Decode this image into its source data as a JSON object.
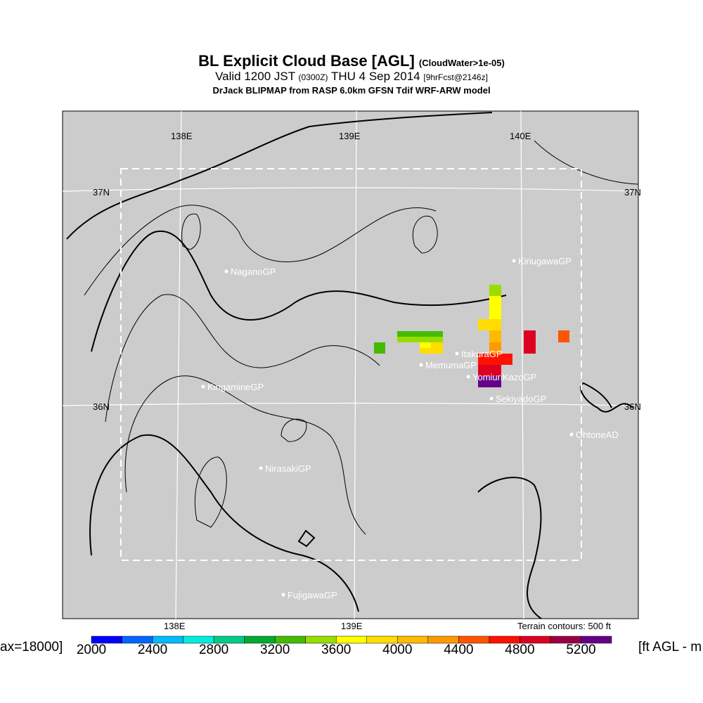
{
  "title": {
    "main": "BL Explicit Cloud Base [AGL]",
    "qualifier": "(CloudWater>1e-05)",
    "valid": "Valid 1200 JST",
    "utc": "(0300Z)",
    "date": "THU 4 Sep 2014",
    "fcst": "[9hrFcst@2146z]",
    "model": "DrJack BLIPMAP from RASP 6.0km GFSN Tdif WRF-ARW model"
  },
  "map": {
    "lon_labels_top": [
      "138E",
      "139E",
      "140E"
    ],
    "lon_labels_bottom": [
      "138E",
      "139E"
    ],
    "lat_labels": [
      "37N",
      "36N"
    ],
    "sites": [
      "NaganoGP",
      "KiriugawaGP",
      "ItakuraGP",
      "MemumaGP",
      "YomiuriKazoGP",
      "KirigamineGP",
      "SekiyadoGP",
      "OhtoneAD",
      "NirasakiGP",
      "FujigawaGP"
    ],
    "terrain_note": "Terrain contours: 500 ft"
  },
  "chart_data": {
    "type": "heatmap",
    "title": "BL Explicit Cloud Base [AGL]",
    "colorbar": {
      "ticks": [
        "2000",
        "2400",
        "2800",
        "3200",
        "3600",
        "4000",
        "4400",
        "4800",
        "5200"
      ],
      "range": [
        2000,
        5400
      ],
      "step": 200,
      "colors": [
        "#0000ff",
        "#0066ff",
        "#00bbff",
        "#00eedd",
        "#00cc88",
        "#00aa33",
        "#44bb00",
        "#99dd00",
        "#ffff00",
        "#ffdd00",
        "#ffbb00",
        "#ff9900",
        "#ff5500",
        "#ff1100",
        "#dd0022",
        "#990044",
        "#660088"
      ]
    },
    "left_label": "ax=18000]",
    "right_label": "[ft AGL - m"
  }
}
